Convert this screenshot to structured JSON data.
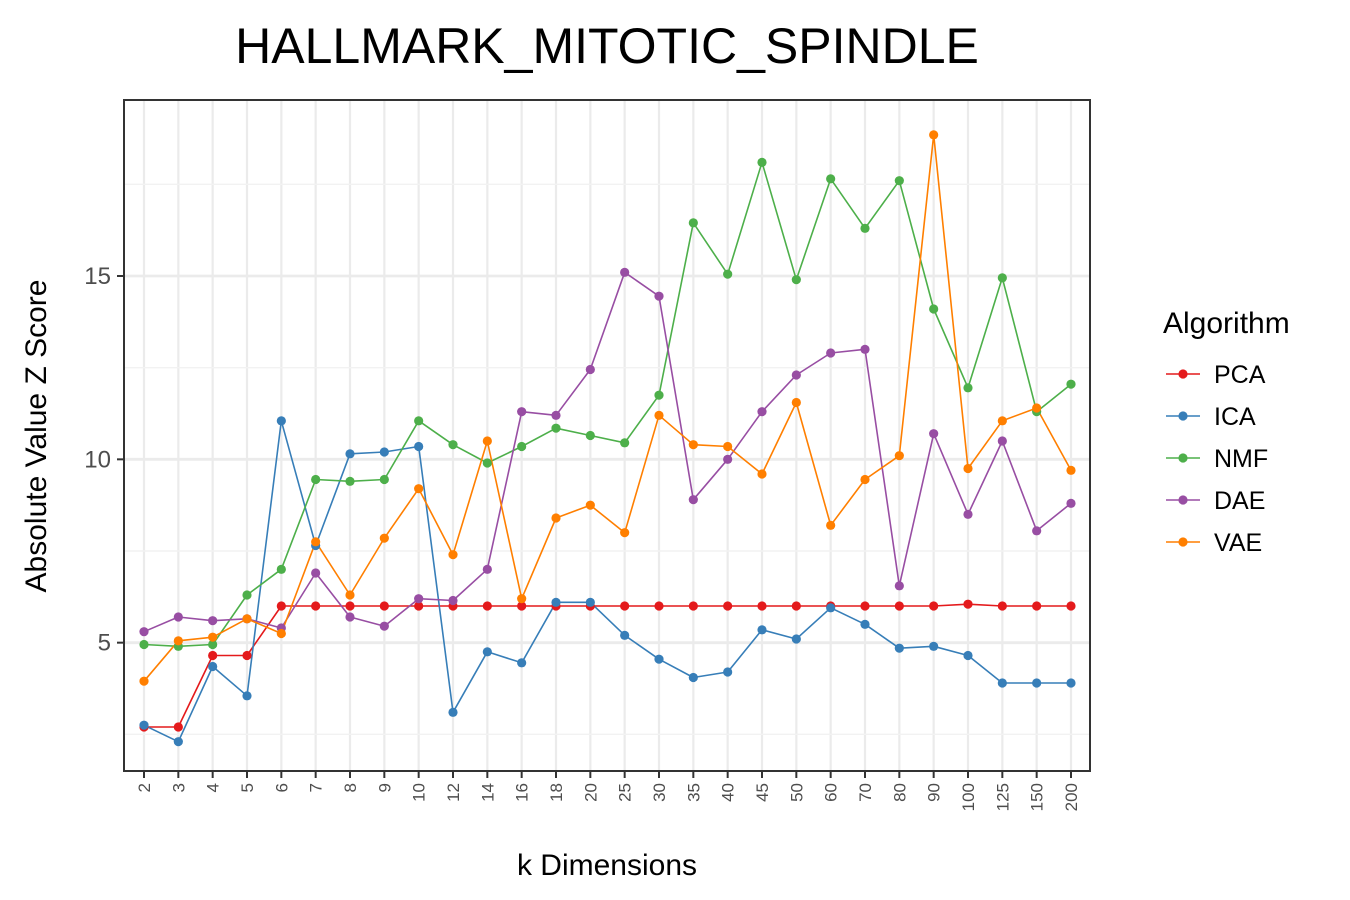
{
  "chart_data": {
    "type": "line",
    "title": "HALLMARK_MITOTIC_SPINDLE",
    "xlabel": "k Dimensions",
    "ylabel": "Absolute Value Z Score",
    "categories": [
      "2",
      "3",
      "4",
      "5",
      "6",
      "7",
      "8",
      "9",
      "10",
      "12",
      "14",
      "16",
      "18",
      "20",
      "25",
      "30",
      "35",
      "40",
      "45",
      "50",
      "60",
      "70",
      "80",
      "90",
      "100",
      "125",
      "150",
      "200"
    ],
    "ylim": [
      1.5,
      19.8
    ],
    "yticks": [
      "5",
      "10",
      "15"
    ],
    "grid": true,
    "legend_title": "Algorithm",
    "legend_position": "right",
    "series": [
      {
        "name": "PCA",
        "color": "#e41a1c",
        "values": [
          2.7,
          2.7,
          4.65,
          4.65,
          6.0,
          6.0,
          6.0,
          6.0,
          6.0,
          6.0,
          6.0,
          6.0,
          6.0,
          6.0,
          6.0,
          6.0,
          6.0,
          6.0,
          6.0,
          6.0,
          6.0,
          6.0,
          6.0,
          6.0,
          6.05,
          6.0,
          6.0,
          6.0
        ]
      },
      {
        "name": "ICA",
        "color": "#377eb8",
        "values": [
          2.75,
          2.3,
          4.35,
          3.55,
          11.05,
          7.65,
          10.15,
          10.2,
          10.35,
          3.1,
          4.75,
          4.45,
          6.1,
          6.1,
          5.2,
          4.55,
          4.05,
          4.2,
          5.35,
          5.1,
          5.95,
          5.5,
          4.85,
          4.9,
          4.65,
          3.9,
          3.9,
          3.9
        ]
      },
      {
        "name": "NMF",
        "color": "#4daf4a",
        "values": [
          4.95,
          4.9,
          4.95,
          6.3,
          7.0,
          9.45,
          9.4,
          9.45,
          11.05,
          10.4,
          9.9,
          10.35,
          10.85,
          10.65,
          10.45,
          11.75,
          16.45,
          15.05,
          18.1,
          14.9,
          17.65,
          16.3,
          17.6,
          14.1,
          11.95,
          14.95,
          11.3,
          12.05
        ]
      },
      {
        "name": "DAE",
        "color": "#984ea3",
        "values": [
          5.3,
          5.7,
          5.6,
          5.65,
          5.4,
          6.9,
          5.7,
          5.45,
          6.2,
          6.15,
          7.0,
          11.3,
          11.2,
          12.45,
          15.1,
          14.45,
          8.9,
          10.0,
          11.3,
          12.3,
          12.9,
          13.0,
          6.55,
          10.7,
          8.5,
          10.5,
          8.05,
          8.8
        ]
      },
      {
        "name": "VAE",
        "color": "#ff7f00",
        "values": [
          3.95,
          5.05,
          5.15,
          5.65,
          5.25,
          7.75,
          6.3,
          7.85,
          9.2,
          7.4,
          10.5,
          6.2,
          8.4,
          8.75,
          8.0,
          11.2,
          10.4,
          10.35,
          9.6,
          11.55,
          8.2,
          9.45,
          10.1,
          18.85,
          9.75,
          11.05,
          11.4,
          9.7
        ]
      }
    ]
  }
}
